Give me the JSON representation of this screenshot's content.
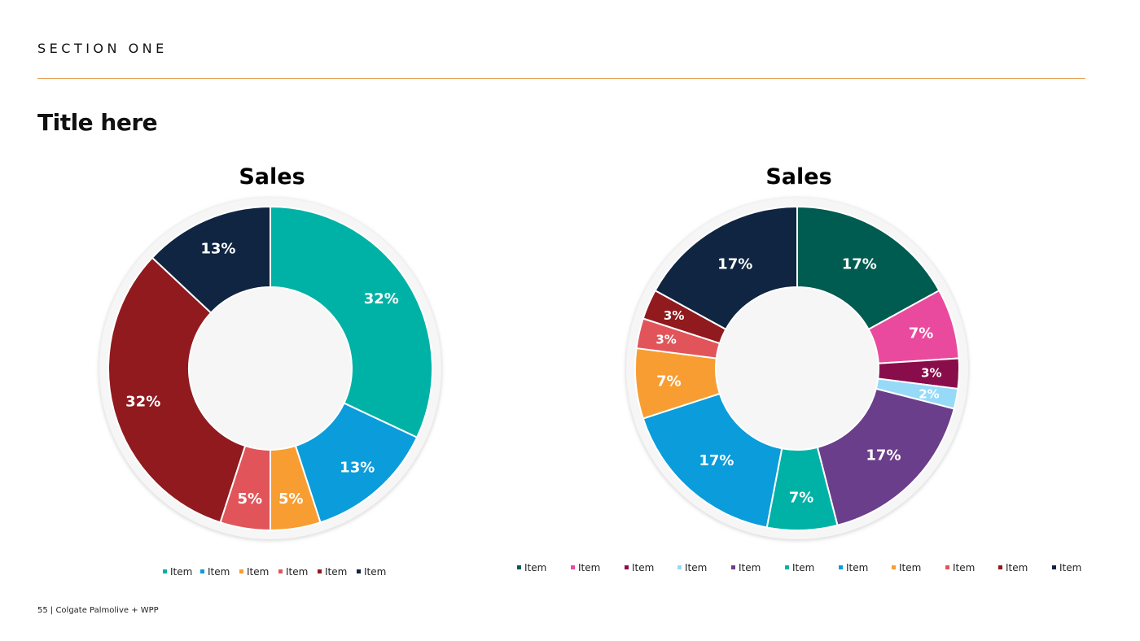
{
  "header": {
    "section": "SECTION ONE",
    "title": "Title here"
  },
  "footer": {
    "text": "55 | Colgate Palmolive + WPP"
  },
  "chart_data": [
    {
      "type": "pie",
      "title": "Sales",
      "legend_position": "bottom",
      "slices": [
        {
          "label": "Item",
          "value": 32,
          "display": "32%",
          "color": "#00B2A5"
        },
        {
          "label": "Item",
          "value": 13,
          "display": "13%",
          "color": "#0A9CDB"
        },
        {
          "label": "Item",
          "value": 5,
          "display": "5%",
          "color": "#F89D31"
        },
        {
          "label": "Item",
          "value": 5,
          "display": "5%",
          "color": "#E1555A"
        },
        {
          "label": "Item",
          "value": 32,
          "display": "32%",
          "color": "#901A1E"
        },
        {
          "label": "Item",
          "value": 13,
          "display": "13%",
          "color": "#0F2541"
        }
      ]
    },
    {
      "type": "pie",
      "title": "Sales",
      "legend_position": "bottom",
      "slices": [
        {
          "label": "Item",
          "value": 17,
          "display": "17%",
          "color": "#005B50"
        },
        {
          "label": "Item",
          "value": 7,
          "display": "7%",
          "color": "#EA4A9E"
        },
        {
          "label": "Item",
          "value": 3,
          "display": "3%",
          "color": "#8A0D4B"
        },
        {
          "label": "Item",
          "value": 2,
          "display": "2%",
          "color": "#96DAF8"
        },
        {
          "label": "Item",
          "value": 17,
          "display": "17%",
          "color": "#6A3E8A"
        },
        {
          "label": "Item",
          "value": 7,
          "display": "7%",
          "color": "#00B2A5"
        },
        {
          "label": "Item",
          "value": 17,
          "display": "17%",
          "color": "#0A9CDB"
        },
        {
          "label": "Item",
          "value": 7,
          "display": "7%",
          "color": "#F89D31"
        },
        {
          "label": "Item",
          "value": 3,
          "display": "3%",
          "color": "#E1555A"
        },
        {
          "label": "Item",
          "value": 3,
          "display": "3%",
          "color": "#901A1E"
        },
        {
          "label": "Item",
          "value": 17,
          "display": "17%",
          "color": "#0F2541"
        }
      ]
    }
  ]
}
